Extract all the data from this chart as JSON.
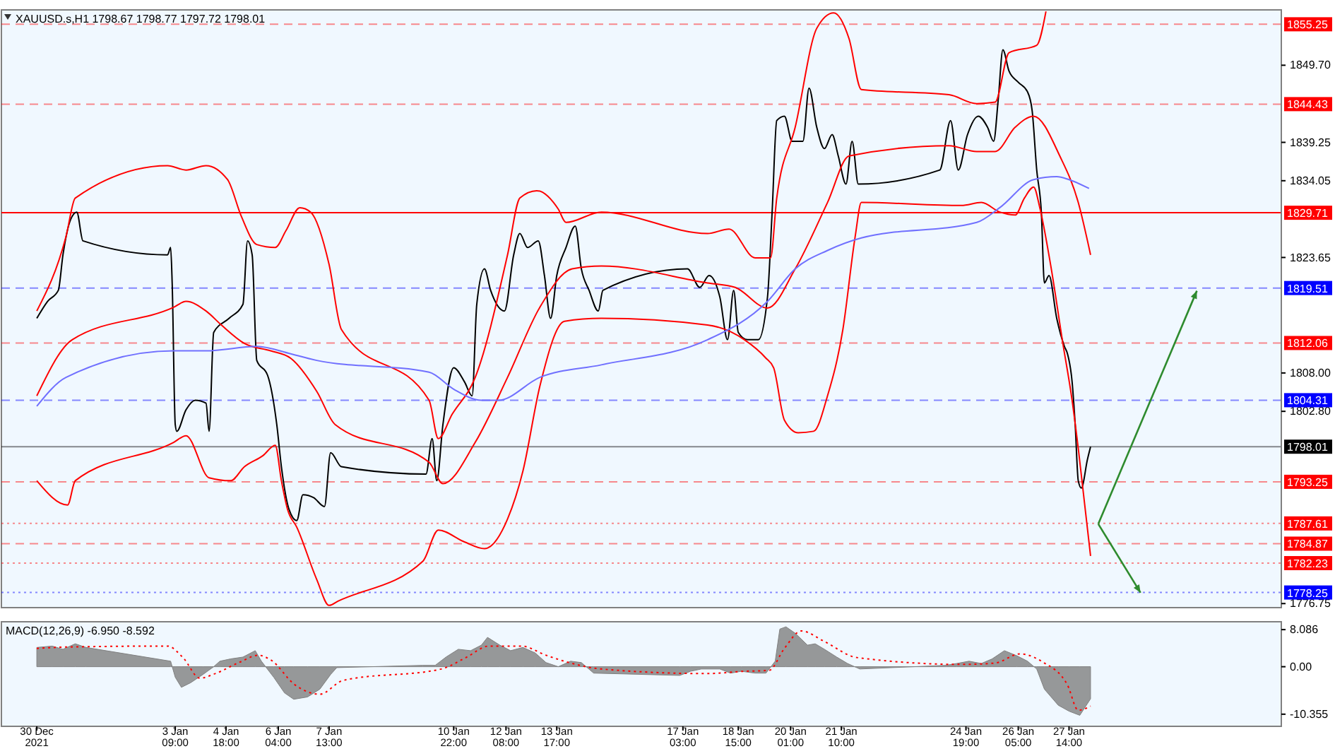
{
  "chart_data": [
    {
      "type": "line",
      "title": "XAUUSD.s,H1  1798.67 1798.77 1797.72 1798.01",
      "tick_labels": "y",
      "xlim": [
        "2021-12-29T16:00",
        "2022-02-02T08:00"
      ],
      "ylim": [
        1776.2,
        1857.2
      ],
      "yticks": [
        {
          "value": 1849.7,
          "label": "1849.70"
        },
        1839.25,
        1834.05,
        1823.65,
        {
          "value": 1808,
          "label": "1808.00"
        },
        {
          "value": 1802.8,
          "label": "1802.80"
        },
        1776.75
      ],
      "ref_lines": [
        {
          "axis": "y",
          "value": 1855.25,
          "label": "1855.25",
          "color": "#ff0000",
          "line_style": "dashed"
        },
        {
          "axis": "y",
          "value": 1844.43,
          "label": "1844.43",
          "color": "#ff0000",
          "line_style": "dashed"
        },
        {
          "axis": "y",
          "value": 1829.71,
          "label": "1829.71",
          "color": "#ff0000",
          "line_style": "solid"
        },
        {
          "axis": "y",
          "value": 1819.51,
          "label": "1819.51",
          "color": "#0000ff",
          "line_style": "dashed"
        },
        {
          "axis": "y",
          "value": 1812.06,
          "label": "1812.06",
          "color": "#ff0000",
          "line_style": "dashed"
        },
        {
          "axis": "y",
          "value": 1804.31,
          "label": "1804.31",
          "color": "#0000ff",
          "line_style": "dashed"
        },
        {
          "axis": "y",
          "value": 1798.01,
          "label": "1798.01",
          "color": "#000000",
          "line_style": "solid"
        },
        {
          "axis": "y",
          "value": 1793.25,
          "label": "1793.25",
          "color": "#ff0000",
          "line_style": "dashed"
        },
        {
          "axis": "y",
          "value": 1787.61,
          "label": "1787.61",
          "color": "#ff0000",
          "line_style": "dotted"
        },
        {
          "axis": "y",
          "value": 1784.87,
          "label": "1784.87",
          "color": "#ff0000",
          "line_style": "dashed"
        },
        {
          "axis": "y",
          "value": 1782.23,
          "label": "1782.23",
          "color": "#ff0000",
          "line_style": "dotted"
        },
        {
          "axis": "y",
          "value": 1778.25,
          "label": "1778.25",
          "color": "#0000ff",
          "line_style": "dotted"
        }
      ],
      "series": [
        {
          "color": "#000000",
          "x": [
            "2021-12-30T15:00",
            "2021-12-30T22:00",
            "2021-12-31T05:00",
            "2021-12-31T08:00",
            "2021-12-31T13:00",
            "2021-12-31T17:00",
            "2021-12-31T21:00",
            "2022-01-03T04:00",
            "2022-01-03T06:00",
            "2022-01-03T07:00",
            "2022-01-03T09:00",
            "2022-01-03T10:00",
            "2022-01-03T16:00",
            "2022-01-03T22:00",
            "2022-01-04T05:00",
            "2022-01-04T07:00",
            "2022-01-04T10:00",
            "2022-01-04T20:00",
            "2022-01-05T05:00",
            "2022-01-05T08:00",
            "2022-01-05T11:00",
            "2022-01-05T14:00",
            "2022-01-05T21:00",
            "2022-01-06T03:00",
            "2022-01-06T06:00",
            "2022-01-06T11:00",
            "2022-01-06T16:00",
            "2022-01-06T20:00",
            "2022-01-07T03:00",
            "2022-01-07T10:00",
            "2022-01-07T14:00",
            "2022-01-07T21:00",
            "2022-01-10T04:00",
            "2022-01-10T08:00",
            "2022-01-10T11:00",
            "2022-01-10T15:00",
            "2022-01-10T22:00",
            "2022-01-11T05:00",
            "2022-01-11T10:00",
            "2022-01-11T13:00",
            "2022-01-11T18:00",
            "2022-01-11T22:00",
            "2022-01-12T07:00",
            "2022-01-12T13:00",
            "2022-01-12T17:00",
            "2022-01-12T22:00",
            "2022-01-13T05:00",
            "2022-01-13T09:00",
            "2022-01-13T13:00",
            "2022-01-13T17:00",
            "2022-01-13T23:00",
            "2022-01-14T05:00",
            "2022-01-14T09:00",
            "2022-01-14T14:00",
            "2022-01-14T20:00",
            "2022-01-14T23:00",
            "2022-01-17T06:00",
            "2022-01-17T14:00",
            "2022-01-17T20:00",
            "2022-01-18T03:00",
            "2022-01-18T08:00",
            "2022-01-18T12:00",
            "2022-01-18T15:00",
            "2022-01-18T21:00",
            "2022-01-19T04:00",
            "2022-01-19T10:00",
            "2022-01-19T13:00",
            "2022-01-19T16:00",
            "2022-01-19T21:00",
            "2022-01-20T02:00",
            "2022-01-20T09:00",
            "2022-01-20T13:00",
            "2022-01-20T18:00",
            "2022-01-20T23:00",
            "2022-01-21T04:00",
            "2022-01-21T08:00",
            "2022-01-21T13:00",
            "2022-01-21T17:00",
            "2022-01-21T21:00",
            "2022-01-24T02:00",
            "2022-01-24T09:00",
            "2022-01-24T14:00",
            "2022-01-24T20:00",
            "2022-01-25T03:00",
            "2022-01-25T09:00",
            "2022-01-25T13:00",
            "2022-01-25T16:00",
            "2022-01-25T19:00",
            "2022-01-25T23:00",
            "2022-01-26T05:00",
            "2022-01-26T11:00",
            "2022-01-26T14:00",
            "2022-01-26T17:00",
            "2022-01-26T20:00",
            "2022-01-26T22:00",
            "2022-01-27T01:00",
            "2022-01-27T06:00",
            "2022-01-27T11:00",
            "2022-01-27T13:00",
            "2022-01-27T16:00",
            "2022-01-27T18:00",
            "2022-01-27T20:00",
            "2022-01-27T22:00",
            "2022-01-28T02:00",
            "2022-01-28T04:00"
          ],
          "values": [
            1815.4,
            1817.7,
            1819.2,
            1824.0,
            1828.8,
            1829.8,
            1825.9,
            1824.0,
            1825.0,
            1820.2,
            1801.0,
            1800.1,
            1803.0,
            1804.3,
            1803.9,
            1800.1,
            1813.5,
            1815.4,
            1817.3,
            1825.9,
            1824.0,
            1809.7,
            1807.7,
            1801.0,
            1795.3,
            1789.5,
            1788.0,
            1791.5,
            1791.1,
            1789.9,
            1797.2,
            1795.3,
            1794.3,
            1799.1,
            1793.4,
            1801.0,
            1808.7,
            1806.8,
            1804.9,
            1817.3,
            1822.1,
            1819.2,
            1816.4,
            1824.0,
            1826.9,
            1825.0,
            1825.9,
            1821.2,
            1815.4,
            1821.2,
            1825.0,
            1827.9,
            1822.1,
            1819.2,
            1816.4,
            1819.2,
            1822.1,
            1819.6,
            1821.2,
            1818.3,
            1812.5,
            1819.2,
            1813.5,
            1812.5,
            1812.5,
            1818.3,
            1829.8,
            1842.2,
            1842.8,
            1839.4,
            1839.4,
            1846.6,
            1841.3,
            1838.4,
            1840.3,
            1837.4,
            1833.6,
            1839.4,
            1833.6,
            1835.5,
            1842.2,
            1835.5,
            1840.3,
            1842.8,
            1841.3,
            1839.4,
            1845.1,
            1851.8,
            1848.9,
            1847.4,
            1846.1,
            1843.6,
            1835.5,
            1829.8,
            1820.2,
            1821.2,
            1815.4,
            1811.6,
            1810.6,
            1806.8,
            1801.0,
            1793.4,
            1792.4,
            1796.3,
            1798.0
          ]
        },
        {
          "color": "#ff0000",
          "x": [
            "2021-12-30T15:00",
            "2021-12-31T10:00",
            "2021-12-31T16:00",
            "2022-01-03T04:00",
            "2022-01-03T16:00",
            "2022-01-04T05:00",
            "2022-01-04T19:00",
            "2022-01-05T04:00",
            "2022-01-05T14:00",
            "2022-01-06T02:00",
            "2022-01-06T09:00",
            "2022-01-06T18:00",
            "2022-01-07T01:00",
            "2022-01-07T13:00",
            "2022-01-07T21:00",
            "2022-01-10T06:00",
            "2022-01-10T12:00",
            "2022-01-10T21:00",
            "2022-01-11T12:00",
            "2022-01-12T09:00",
            "2022-01-12T17:00",
            "2022-01-13T04:00",
            "2022-01-13T18:00",
            "2022-01-13T23:00",
            "2022-01-14T22:00",
            "2022-01-17T19:00",
            "2022-01-18T09:00",
            "2022-01-19T02:00",
            "2022-01-19T12:00",
            "2022-01-19T16:00",
            "2022-01-20T04:00",
            "2022-01-20T18:00",
            "2022-01-21T05:00",
            "2022-01-21T15:00",
            "2022-01-21T23:00",
            "2022-01-24T08:00",
            "2022-01-25T02:00",
            "2022-01-25T14:00",
            "2022-01-25T23:00",
            "2022-01-26T17:00",
            "2022-01-26T23:00"
          ],
          "values": [
            1816.4,
            1826.5,
            1831.7,
            1836.1,
            1835.5,
            1836.1,
            1834.2,
            1829.2,
            1825.4,
            1825.0,
            1827.3,
            1830.4,
            1829.8,
            1822.7,
            1813.9,
            1804.3,
            1799.1,
            1802.4,
            1807.4,
            1824.0,
            1831.7,
            1832.7,
            1830.2,
            1828.4,
            1829.8,
            1826.9,
            1827.5,
            1823.6,
            1823.6,
            1831.7,
            1841.3,
            1854.7,
            1856.8,
            1853.3,
            1846.4,
            1845.7,
            1844.5,
            1844.7,
            1851.4,
            1852.4,
            1857.0
          ]
        },
        {
          "color": "#ff0000",
          "x": [
            "2021-12-30T15:00",
            "2021-12-31T14:00",
            "2022-01-03T08:00",
            "2022-01-03T16:00",
            "2022-01-04T05:00",
            "2022-01-04T15:00",
            "2022-01-05T06:00",
            "2022-01-05T23:00",
            "2022-01-06T12:00",
            "2022-01-07T05:00",
            "2022-01-07T17:00",
            "2022-01-10T06:00",
            "2022-01-10T15:00",
            "2022-01-11T12:00",
            "2022-01-12T09:00",
            "2022-01-13T06:00",
            "2022-01-14T03:00",
            "2022-01-14T22:00",
            "2022-01-17T19:00",
            "2022-01-18T13:00",
            "2022-01-19T10:00",
            "2022-01-20T04:00",
            "2022-01-21T01:00",
            "2022-01-21T15:00",
            "2022-01-24T08:00",
            "2022-01-25T02:00",
            "2022-01-25T14:00",
            "2022-01-26T03:00",
            "2022-01-26T15:00",
            "2022-01-27T08:00",
            "2022-01-27T20:00",
            "2022-01-28T04:00"
          ],
          "values": [
            1804.9,
            1812.5,
            1816.9,
            1817.7,
            1816.4,
            1814.5,
            1812.0,
            1811.0,
            1810.0,
            1805.5,
            1801.0,
            1795.9,
            1793.0,
            1798.6,
            1807.4,
            1816.9,
            1822.1,
            1822.5,
            1820.2,
            1819.6,
            1816.8,
            1822.1,
            1831.1,
            1837.4,
            1838.8,
            1838.0,
            1838.0,
            1841.3,
            1842.8,
            1837.4,
            1831.1,
            1824.0
          ]
        },
        {
          "color": "#ff0000",
          "x": [
            "2021-12-30T15:00",
            "2021-12-31T11:00",
            "2021-12-31T16:00",
            "2022-01-03T08:00",
            "2022-01-03T16:00",
            "2022-01-04T07:00",
            "2022-01-04T21:00",
            "2022-01-05T06:00",
            "2022-01-05T18:00",
            "2022-01-06T02:00",
            "2022-01-06T06:00",
            "2022-01-06T10:00",
            "2022-01-06T16:00",
            "2022-01-07T05:00",
            "2022-01-07T13:00",
            "2022-01-07T19:00",
            "2022-01-10T02:00",
            "2022-01-10T12:00",
            "2022-01-11T05:00",
            "2022-01-11T18:00",
            "2022-01-12T09:00",
            "2022-01-12T19:00",
            "2022-01-13T06:00",
            "2022-01-13T22:00",
            "2022-01-14T22:00",
            "2022-01-17T19:00",
            "2022-01-18T19:00",
            "2022-01-19T09:00",
            "2022-01-19T14:00",
            "2022-01-19T21:00",
            "2022-01-20T06:00",
            "2022-01-20T16:00",
            "2022-01-21T01:00",
            "2022-01-21T11:00",
            "2022-01-21T19:00",
            "2022-01-21T23:00",
            "2022-01-24T16:00",
            "2022-01-25T05:00",
            "2022-01-25T17:00",
            "2022-01-26T03:00",
            "2022-01-26T09:00",
            "2022-01-26T15:00",
            "2022-01-26T19:00",
            "2022-01-27T02:00",
            "2022-01-27T10:00",
            "2022-01-27T16:00",
            "2022-01-27T20:00",
            "2022-01-28T04:00"
          ],
          "values": [
            1793.4,
            1790.1,
            1793.4,
            1798.6,
            1799.5,
            1793.8,
            1793.4,
            1795.3,
            1796.8,
            1798.2,
            1793.4,
            1789.5,
            1787.1,
            1780.0,
            1776.5,
            1777.1,
            1782.5,
            1786.7,
            1785.1,
            1784.2,
            1788.2,
            1794.7,
            1806.2,
            1815.0,
            1815.4,
            1814.5,
            1812.5,
            1810.0,
            1808.7,
            1801.6,
            1799.9,
            1800.1,
            1804.9,
            1813.9,
            1826.5,
            1831.1,
            1830.7,
            1831.1,
            1829.8,
            1829.4,
            1831.7,
            1833.2,
            1830.4,
            1822.7,
            1812.0,
            1804.3,
            1797.8,
            1783.2
          ]
        },
        {
          "color": "#7070ff",
          "x": [
            "2021-12-30T15:00",
            "2021-12-31T10:00",
            "2022-01-03T08:00",
            "2022-01-04T05:00",
            "2022-01-05T14:00",
            "2022-01-06T12:00",
            "2022-01-07T05:00",
            "2022-01-10T06:00",
            "2022-01-10T22:00",
            "2022-01-11T16:00",
            "2022-01-12T03:00",
            "2022-01-13T06:00",
            "2022-01-14T22:00",
            "2022-01-17T19:00",
            "2022-01-19T10:00",
            "2022-01-20T04:00",
            "2022-01-21T01:00",
            "2022-01-21T23:00",
            "2022-01-25T02:00",
            "2022-01-25T17:00",
            "2022-01-26T15:00",
            "2022-01-27T06:00",
            "2022-01-27T14:00",
            "2022-01-28T03:00"
          ],
          "values": [
            1803.5,
            1807.4,
            1811.0,
            1811.0,
            1811.6,
            1810.6,
            1809.7,
            1808.1,
            1805.8,
            1804.3,
            1804.3,
            1807.4,
            1809.1,
            1812.5,
            1817.7,
            1822.1,
            1824.6,
            1826.3,
            1828.4,
            1830.4,
            1834.2,
            1834.6,
            1834.2,
            1833.0
          ]
        }
      ]
    },
    {
      "type": "line",
      "title": "MACD(12,26,9) -6.950 -8.592",
      "xlim": [
        "2021-12-29T16:00",
        "2022-02-02T08:00"
      ],
      "xticks": [
        {
          "value": "2021-12-30T15:00",
          "label": "30 Dec 2021"
        },
        {
          "value": "2022-01-03T09:00",
          "label": "3 Jan 09:00"
        },
        {
          "value": "2022-01-04T18:00",
          "label": "4 Jan 18:00"
        },
        {
          "value": "2022-01-06T04:00",
          "label": "6 Jan 04:00"
        },
        {
          "value": "2022-01-07T13:00",
          "label": "7 Jan 13:00"
        },
        {
          "value": "2022-01-10T22:00",
          "label": "10 Jan 22:00"
        },
        {
          "value": "2022-01-12T08:00",
          "label": "12 Jan 08:00"
        },
        {
          "value": "2022-01-13T17:00",
          "label": "13 Jan 17:00"
        },
        {
          "value": "2022-01-17T03:00",
          "label": "17 Jan 03:00"
        },
        {
          "value": "2022-01-18T15:00",
          "label": "18 Jan 15:00"
        },
        {
          "value": "2022-01-20T01:00",
          "label": "20 Jan 01:00"
        },
        {
          "value": "2022-01-21T10:00",
          "label": "21 Jan 10:00"
        },
        {
          "value": "2022-01-24T19:00",
          "label": "24 Jan 19:00"
        },
        {
          "value": "2022-01-26T05:00",
          "label": "26 Jan 05:00"
        },
        {
          "value": "2022-01-27T14:00",
          "label": "27 Jan 14:00"
        }
      ],
      "ylim": [
        -13,
        9.8
      ],
      "yticks": [
        8.086,
        {
          "value": 0,
          "label": "0.00"
        },
        -10.355
      ],
      "series": [
        {
          "type": "area",
          "color": "#808080",
          "x": [
            "2021-12-30T15:00",
            "2021-12-31T01:00",
            "2021-12-31T08:00",
            "2021-12-31T16:00",
            "2021-12-31T23:00",
            "2022-01-03T06:00",
            "2022-01-03T09:00",
            "2022-01-03T13:00",
            "2022-01-03T19:00",
            "2022-01-04T03:00",
            "2022-01-04T10:00",
            "2022-01-04T14:00",
            "2022-01-04T21:00",
            "2022-01-05T05:00",
            "2022-01-05T13:00",
            "2022-01-05T17:00",
            "2022-01-06T01:00",
            "2022-01-06T08:00",
            "2022-01-06T14:00",
            "2022-01-06T23:00",
            "2022-01-07T07:00",
            "2022-01-07T14:00",
            "2022-01-07T18:00",
            "2022-01-10T02:00",
            "2022-01-10T10:00",
            "2022-01-10T17:00",
            "2022-01-11T01:00",
            "2022-01-11T09:00",
            "2022-01-11T16:00",
            "2022-01-11T20:00",
            "2022-01-12T04:00",
            "2022-01-12T11:00",
            "2022-01-12T19:00",
            "2022-01-13T03:00",
            "2022-01-13T10:00",
            "2022-01-13T18:00",
            "2022-01-14T02:00",
            "2022-01-14T09:00",
            "2022-01-14T17:00",
            "2022-01-17T01:00",
            "2022-01-17T08:00",
            "2022-01-17T15:00",
            "2022-01-18T03:00",
            "2022-01-18T10:00",
            "2022-01-18T17:00",
            "2022-01-19T02:00",
            "2022-01-19T09:00",
            "2022-01-19T15:00",
            "2022-01-19T18:00",
            "2022-01-19T22:00",
            "2022-01-20T04:00",
            "2022-01-20T12:00",
            "2022-01-20T17:00",
            "2022-01-20T23:00",
            "2022-01-21T07:00",
            "2022-01-21T14:00",
            "2022-01-21T22:00",
            "2022-01-24T06:00",
            "2022-01-24T13:00",
            "2022-01-24T21:00",
            "2022-01-25T05:00",
            "2022-01-25T12:00",
            "2022-01-25T20:00",
            "2022-01-26T04:00",
            "2022-01-26T11:00",
            "2022-01-26T17:00",
            "2022-01-26T22:00",
            "2022-01-27T07:00",
            "2022-01-27T14:00",
            "2022-01-27T21:00",
            "2022-01-28T04:00"
          ],
          "values": [
            4.2,
            4.5,
            3.8,
            5.0,
            4.2,
            1.2,
            -2.3,
            -4.5,
            -3.5,
            -1.7,
            0.0,
            1.2,
            1.7,
            2.1,
            3.5,
            1.2,
            -2.3,
            -5.7,
            -7.1,
            -6.6,
            -4.9,
            -1.7,
            -0.2,
            0.3,
            0.3,
            2.1,
            3.8,
            3.5,
            4.7,
            6.4,
            4.7,
            3.5,
            4.2,
            3.0,
            0.9,
            0.0,
            1.2,
            0.9,
            -1.4,
            -1.9,
            -1.0,
            -0.5,
            -0.5,
            -1.4,
            -1.0,
            -1.4,
            -1.4,
            1.2,
            8.2,
            8.7,
            7.3,
            4.7,
            5.0,
            3.8,
            2.1,
            0.7,
            -0.5,
            0.3,
            0.7,
            1.2,
            0.7,
            1.7,
            3.5,
            2.4,
            1.2,
            -0.5,
            -4.9,
            -8.4,
            -9.7,
            -10.6,
            -7.0
          ]
        },
        {
          "color": "#ff0000",
          "line_style": "dotted",
          "x": [
            "2021-12-30T15:00",
            "2021-12-31T12:00",
            "2022-01-03T04:00",
            "2022-01-03T14:00",
            "2022-01-04T01:00",
            "2022-01-04T11:00",
            "2022-01-05T03:00",
            "2022-01-05T15:00",
            "2022-01-05T23:00",
            "2022-01-06T15:00",
            "2022-01-07T07:00",
            "2022-01-07T22:00",
            "2022-01-10T14:00",
            "2022-01-11T06:00",
            "2022-01-11T21:00",
            "2022-01-12T18:00",
            "2022-01-13T10:00",
            "2022-01-14T02:00",
            "2022-01-14T22:00",
            "2022-01-17T19:00",
            "2022-01-18T19:00",
            "2022-01-19T11:00",
            "2022-01-19T21:00",
            "2022-01-20T08:00",
            "2022-01-20T23:00",
            "2022-01-21T20:00",
            "2022-01-24T17:00",
            "2022-01-25T14:00",
            "2022-01-26T06:00",
            "2022-01-26T21:00",
            "2022-01-27T13:00",
            "2022-01-27T20:00",
            "2022-01-28T04:00"
          ],
          "values": [
            4.0,
            4.3,
            4.5,
            2.0,
            -2.5,
            -1.5,
            1.0,
            2.5,
            1.5,
            -4.0,
            -6.0,
            -3.0,
            -0.5,
            2.0,
            4.5,
            4.5,
            2.5,
            0.8,
            -0.5,
            -1.5,
            -1.0,
            -0.8,
            4.0,
            7.8,
            5.5,
            2.0,
            0.5,
            0.8,
            2.8,
            1.0,
            -4.0,
            -9.5,
            -8.6
          ]
        }
      ]
    }
  ]
}
